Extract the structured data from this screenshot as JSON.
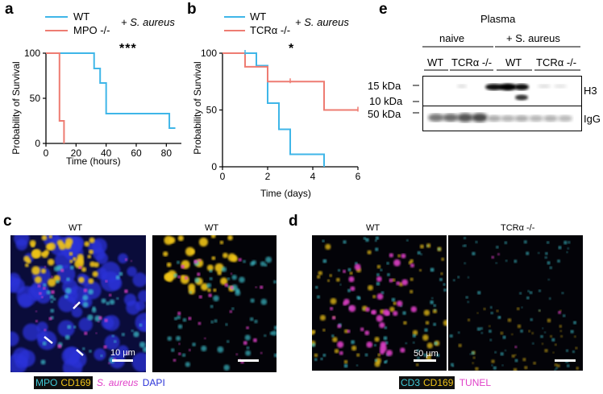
{
  "panels": {
    "a": {
      "letter": "a",
      "legend": {
        "wt": "WT",
        "ko": "MPO -/-",
        "condition": "+ S. aureus"
      },
      "significance": "***",
      "ylabel": "Probability of Survival",
      "xlabel": "Time (hours)",
      "xticks": [
        "0",
        "20",
        "40",
        "60",
        "80"
      ],
      "yticks": [
        "0",
        "50",
        "100"
      ]
    },
    "b": {
      "letter": "b",
      "legend": {
        "wt": "WT",
        "ko": "TCRα -/-",
        "condition": "+ S. aureus"
      },
      "significance": "*",
      "ylabel": "Probability of Survival",
      "xlabel": "Time (days)",
      "xticks": [
        "0",
        "2",
        "4",
        "6"
      ],
      "yticks": [
        "0",
        "50",
        "100"
      ]
    },
    "c": {
      "letter": "c",
      "left_title": "WT",
      "right_title": "WT",
      "scale_label": "10 µm",
      "stain_labels": {
        "mpo": "MPO",
        "cd169": "CD169",
        "saureus": "S. aureus",
        "dapi": "DAPI"
      }
    },
    "d": {
      "letter": "d",
      "left_title": "WT",
      "right_title": "TCRα -/-",
      "scale_label": "50 µm",
      "stain_labels": {
        "cd3": "CD3",
        "cd169": "CD169",
        "tunel": "TUNEL"
      }
    },
    "e": {
      "letter": "e",
      "title": "Plasma",
      "group_naive": "naive",
      "group_infected": "+ S. aureus",
      "lanes_naive": [
        "WT",
        "TCRα -/-"
      ],
      "lanes_infected": [
        "WT",
        "TCRα -/-"
      ],
      "markers_h3": [
        "15 kDa",
        "10 kDa"
      ],
      "marker_igg": "50 kDa",
      "band_h3": "H3",
      "band_igg": "IgG"
    }
  },
  "colors": {
    "wt": "#3fb6e8",
    "ko": "#ee7c72",
    "mpo": "#3fc9d6",
    "cd169": "#f0c419",
    "saureus": "#e040c8",
    "dapi": "#2a32d8",
    "tunel": "#e040c8",
    "cd3": "#3fc9d6"
  },
  "chart_data": [
    {
      "type": "line",
      "panel": "a",
      "xlabel": "Time (hours)",
      "ylabel": "Probability of Survival",
      "xlim": [
        0,
        90
      ],
      "ylim": [
        0,
        100
      ],
      "series": [
        {
          "name": "WT",
          "x": [
            0,
            32,
            32,
            36,
            36,
            40,
            40,
            82,
            82,
            86
          ],
          "y": [
            100,
            100,
            83,
            83,
            67,
            67,
            33,
            33,
            17,
            17
          ]
        },
        {
          "name": "MPO -/-",
          "x": [
            0,
            9,
            9,
            12,
            12
          ],
          "y": [
            100,
            100,
            25,
            25,
            0
          ]
        }
      ]
    },
    {
      "type": "line",
      "panel": "b",
      "xlabel": "Time (days)",
      "ylabel": "Probability of Survival",
      "xlim": [
        0,
        6
      ],
      "ylim": [
        0,
        100
      ],
      "series": [
        {
          "name": "WT",
          "x": [
            0,
            1.5,
            1.5,
            2,
            2,
            2.5,
            2.5,
            3,
            3,
            4.5,
            4.5
          ],
          "y": [
            100,
            100,
            89,
            89,
            56,
            56,
            33,
            33,
            11,
            11,
            0
          ]
        },
        {
          "name": "TCRα -/-",
          "x": [
            0,
            1,
            1,
            2,
            2,
            4.5,
            4.5,
            6
          ],
          "y": [
            100,
            100,
            88,
            88,
            75,
            75,
            50,
            50
          ]
        }
      ]
    }
  ]
}
